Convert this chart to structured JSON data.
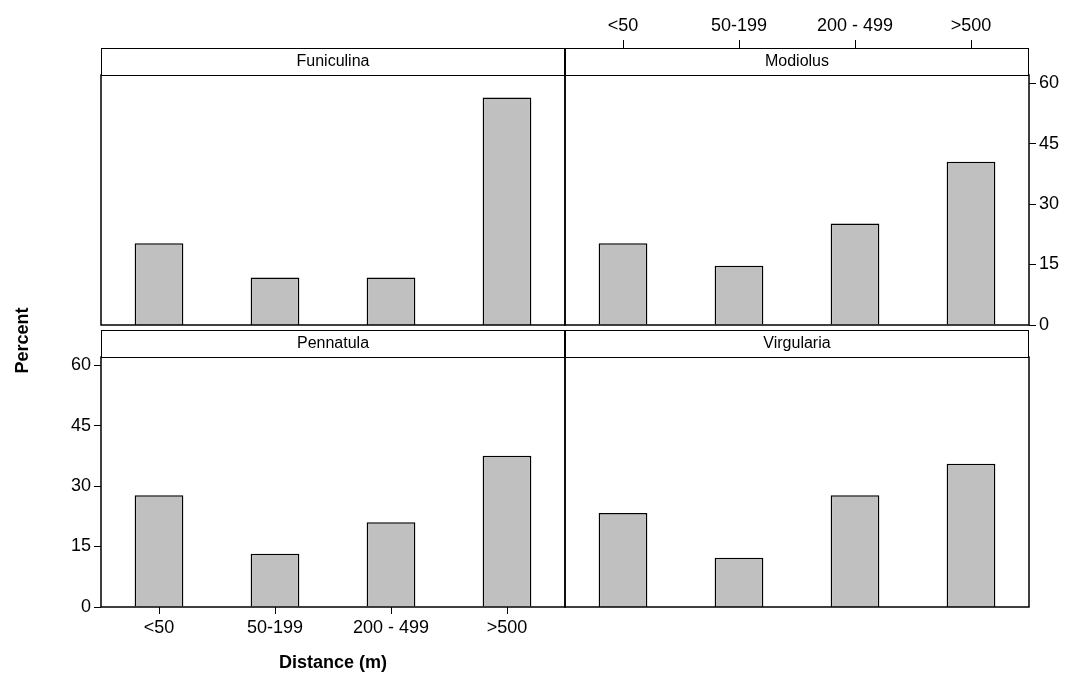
{
  "chart_data": [
    {
      "type": "bar",
      "title": "Funiculina",
      "categories": [
        null,
        null,
        null,
        null
      ],
      "values": [
        20.3,
        11.8,
        11.8,
        56.4
      ],
      "color": "#c0c0c0",
      "ylim": [
        0,
        62
      ],
      "yticks": [
        0,
        15,
        30,
        45,
        60
      ],
      "tick_labels": false
    },
    {
      "type": "bar",
      "title": "Modiolus",
      "categories": [
        "<50",
        "50-199",
        "200 - 499",
        ">500"
      ],
      "values": [
        20.3,
        14.7,
        25.2,
        40.5
      ],
      "color": "#c0c0c0",
      "ylim": [
        0,
        62
      ],
      "yticks": [
        0,
        15,
        30,
        45,
        60
      ]
    },
    {
      "type": "bar",
      "title": "Pennatula",
      "xlabel": "Distance (m)",
      "ylabel": "Percent",
      "categories": [
        "<50",
        "50-199",
        "200 - 499",
        ">500"
      ],
      "values": [
        27.7,
        13.2,
        21.0,
        37.5
      ],
      "color": "#c0c0c0",
      "ylim": [
        0,
        62
      ],
      "yticks": [
        0,
        15,
        30,
        45,
        60
      ]
    },
    {
      "type": "bar",
      "title": "Virgularia",
      "categories": [
        null,
        null,
        null,
        null
      ],
      "values": [
        23.3,
        12.2,
        27.7,
        35.5
      ],
      "color": "#c0c0c0",
      "ylim": [
        0,
        62
      ],
      "yticks": [
        0,
        15,
        30,
        45,
        60
      ],
      "tick_labels": false
    }
  ]
}
